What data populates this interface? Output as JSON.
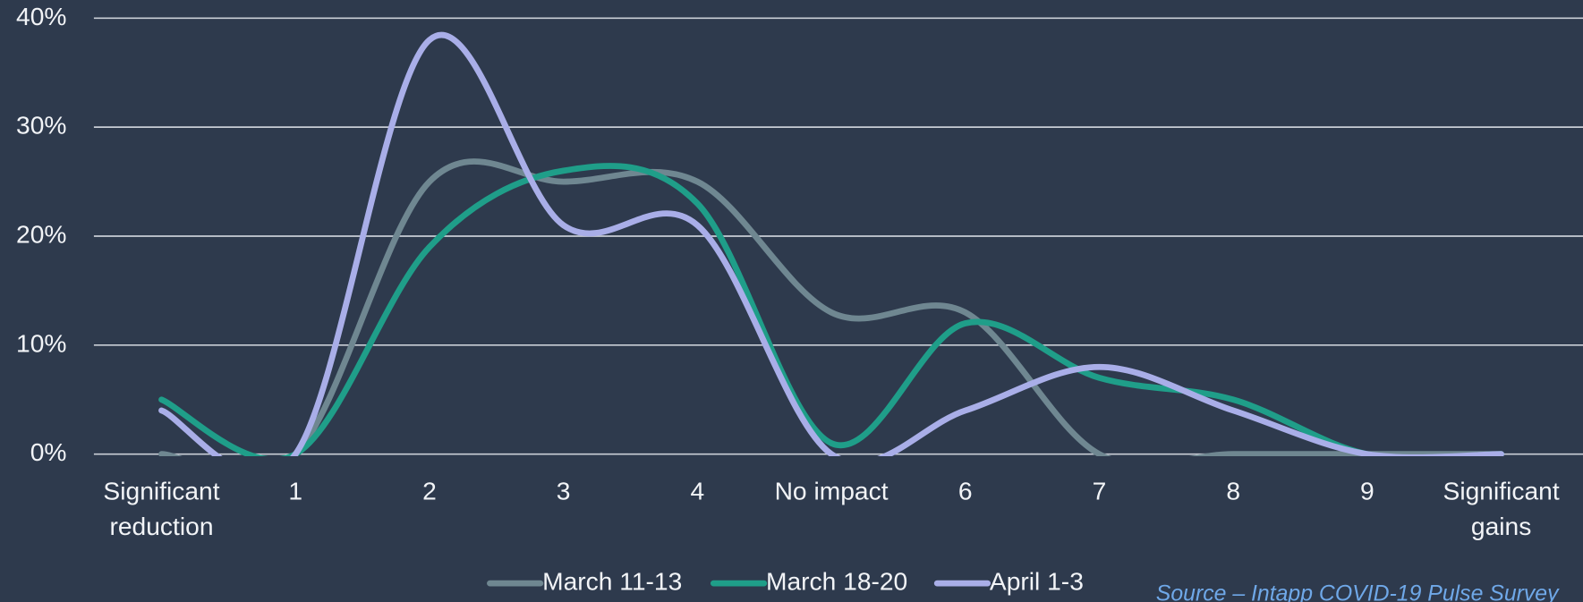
{
  "chart_data": {
    "type": "line",
    "categories": [
      "Significant reduction",
      "1",
      "2",
      "3",
      "4",
      "No impact",
      "6",
      "7",
      "8",
      "9",
      "Significant gains"
    ],
    "series": [
      {
        "name": "March 11-13",
        "color": "#6f8791",
        "values": [
          0,
          0,
          25,
          25,
          25,
          13,
          13,
          0,
          0,
          0,
          0
        ]
      },
      {
        "name": "March 18-20",
        "color": "#1f9e89",
        "values": [
          5,
          0,
          19,
          26,
          23,
          1,
          12,
          7,
          5,
          0,
          0
        ]
      },
      {
        "name": "April 1-3",
        "color": "#a9aee8",
        "values": [
          4,
          0,
          38,
          21,
          21,
          0,
          4,
          8,
          4,
          0,
          0
        ]
      }
    ],
    "ylim": [
      0,
      40
    ],
    "yticks": [
      {
        "value": 0,
        "label": "0%"
      },
      {
        "value": 10,
        "label": "10%"
      },
      {
        "value": 20,
        "label": "20%"
      },
      {
        "value": 30,
        "label": "30%"
      },
      {
        "value": 40,
        "label": "40%"
      }
    ],
    "grid": true,
    "smooth": true,
    "legend": "bottom",
    "source": "Source – Intapp COVID-19 Pulse Survey"
  }
}
